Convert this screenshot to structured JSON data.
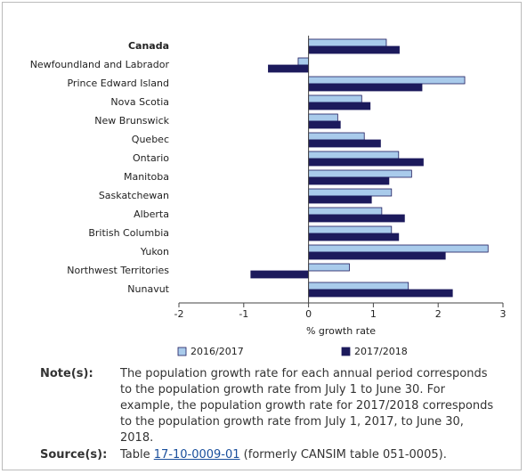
{
  "chart_data": {
    "type": "bar",
    "orientation": "horizontal",
    "categories": [
      "Canada",
      "Newfoundland and Labrador",
      "Prince Edward Island",
      "Nova Scotia",
      "New Brunswick",
      "Quebec",
      "Ontario",
      "Manitoba",
      "Saskatchewan",
      "Alberta",
      "British Columbia",
      "Yukon",
      "Northwest Territories",
      "Nunavut"
    ],
    "series": [
      {
        "name": "2016/2017",
        "color": "#a9cbeb",
        "values": [
          1.2,
          -0.16,
          2.41,
          0.82,
          0.45,
          0.86,
          1.39,
          1.59,
          1.28,
          1.13,
          1.28,
          2.77,
          0.63,
          1.54
        ]
      },
      {
        "name": "2017/2018",
        "color": "#1c1a5c",
        "values": [
          1.4,
          -0.62,
          1.75,
          0.95,
          0.49,
          1.11,
          1.77,
          1.24,
          0.97,
          1.48,
          1.39,
          2.11,
          -0.89,
          2.22
        ]
      }
    ],
    "xlim": [
      -2,
      3
    ],
    "xticks": [
      -2,
      -1,
      0,
      1,
      2,
      3
    ],
    "xlabel": "% growth rate",
    "legend": "bottom"
  },
  "notes": {
    "label": "Note(s):",
    "text": "The population growth rate for each annual period corresponds to the population growth rate from July 1 to June 30. For example, the population growth rate for 2017/2018 corresponds to the population growth rate from July 1, 2017, to June 30, 2018."
  },
  "source": {
    "label": "Source(s):",
    "prefix": "Table ",
    "link": "17-10-0009-01",
    "suffix": " (formerly CANSIM table 051-0005)."
  }
}
